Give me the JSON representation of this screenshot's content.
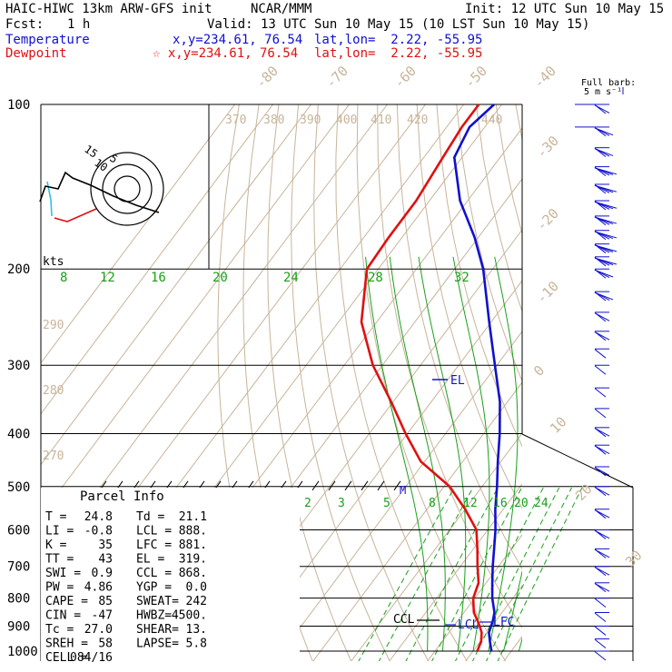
{
  "header": {
    "title": "HAIC-HIWC 13km ARW-GFS init",
    "org": "NCAR/MMM",
    "init": "Init: 12 UTC Sun 10 May 15",
    "fcst_label": "Fcst:",
    "fcst_value": "1 h",
    "valid": "Valid: 13 UTC Sun 10 May 15 (10 LST Sun 10 May 15)",
    "temp_label": "Temperature",
    "temp_xy": "x,y=234.61, 76.54",
    "temp_latlon": "lat,lon=  2.22, -55.95",
    "dew_label": "Dewpoint",
    "dew_xy": "☆ x,y=234.61, 76.54",
    "dew_latlon": "lat,lon=  2.22, -55.95",
    "barb_title": "Full barb:",
    "barb_unit": "5 m s⁻¹"
  },
  "colors": {
    "temperature": "#1010d0",
    "dewpoint": "#e01010",
    "isotherm": "#c8b49a",
    "mixing_ratio": "#19a019",
    "isobar": "#000000",
    "barb": "#1010d0"
  },
  "parcel_info": {
    "title": "Parcel Info",
    "rows": [
      [
        "T  =",
        "24.8",
        "Td =",
        "21.1"
      ],
      [
        "LI =",
        "-0.8",
        "LCL =",
        "888."
      ],
      [
        "K  =",
        "35",
        "LFC =",
        "881."
      ],
      [
        "TT =",
        "43",
        "EL  =",
        "319."
      ],
      [
        "SWI =",
        "0.9",
        "CCL =",
        "868."
      ],
      [
        "PW =",
        "4.86",
        "YGP =",
        "0.0"
      ],
      [
        "CAPE =",
        "85",
        "SWEAT=",
        "242"
      ],
      [
        "CIN =",
        "-47",
        "HWBZ=",
        "4500."
      ],
      [
        "Tc =",
        "27.0",
        "SHEAR=",
        "13."
      ],
      [
        "SREH =",
        "58",
        "LAPSE=",
        "5.8"
      ],
      [
        "CELL =",
        "084/16",
        "",
        ""
      ]
    ]
  },
  "chart_data": {
    "type": "skew-t",
    "yaxis": "Pressure (hPa)",
    "pressure_levels": [
      100,
      200,
      300,
      400,
      500,
      600,
      700,
      800,
      900,
      1000
    ],
    "isotherm_labels": [
      -80,
      -70,
      -60,
      -50,
      -40,
      -30,
      -20,
      -10,
      0,
      10,
      20,
      30,
      40
    ],
    "theta_labels": [
      370,
      380,
      390,
      400,
      410,
      420,
      430,
      440,
      290,
      280,
      270
    ],
    "mixing_ratio_upper": [
      8,
      12,
      16,
      20,
      24,
      28,
      32
    ],
    "mixing_ratio_lower": [
      2,
      3,
      5,
      8,
      12,
      16,
      20,
      24
    ],
    "series": [
      {
        "name": "Temperature",
        "p": [
          1000,
          960,
          925,
          900,
          880,
          850,
          800,
          750,
          700,
          650,
          600,
          550,
          500,
          450,
          400,
          350,
          300,
          250,
          200,
          175,
          150,
          125,
          110,
          100
        ],
        "t": [
          24.8,
          22.5,
          20.5,
          19.8,
          19.2,
          18.0,
          14.6,
          11.6,
          8.5,
          5.4,
          2.0,
          -2.1,
          -6.1,
          -10.8,
          -15.8,
          -22.0,
          -30.5,
          -40.5,
          -52.5,
          -61.0,
          -72.0,
          -82.0,
          -84.0,
          -82.0
        ]
      },
      {
        "name": "Dewpoint",
        "p": [
          1000,
          960,
          925,
          900,
          880,
          850,
          800,
          750,
          700,
          650,
          600,
          550,
          500,
          450,
          400,
          350,
          300,
          250,
          200,
          175,
          150,
          125,
          110,
          100
        ],
        "t": [
          21.1,
          20.2,
          18.6,
          16.8,
          15.2,
          12.6,
          9.6,
          8.0,
          4.5,
          1.0,
          -3.0,
          -10.0,
          -18.5,
          -31.0,
          -40.5,
          -50.5,
          -62.5,
          -74.0,
          -83.0,
          -83.5,
          -83.5,
          -85.0,
          -86.0,
          -86.0
        ]
      }
    ],
    "annotations": [
      "EL",
      "CCL",
      "LCL",
      "LFC",
      "M",
      "kts"
    ],
    "hodograph_rings": [
      "5",
      "10",
      "15"
    ],
    "wind_profile": {
      "p": [
        100,
        110,
        120,
        130,
        140,
        150,
        160,
        170,
        180,
        190,
        200,
        220,
        240,
        260,
        280,
        300,
        330,
        360,
        390,
        420,
        460,
        500,
        550,
        600,
        650,
        700,
        750,
        800,
        850,
        900,
        950,
        1000
      ],
      "speed_ms": [
        12,
        14,
        16,
        18,
        20,
        22,
        22,
        22,
        20,
        18,
        16,
        14,
        12,
        10,
        7,
        5,
        6,
        7,
        8,
        8,
        9,
        10,
        10,
        9,
        8,
        8,
        8,
        7,
        6,
        6,
        5,
        5
      ]
    }
  }
}
